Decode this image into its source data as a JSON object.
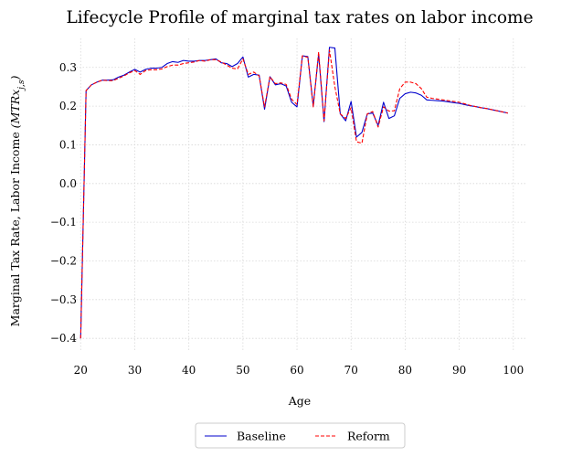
{
  "chart_data": {
    "type": "line",
    "title": "Lifecycle Profile of marginal tax rates on labor income",
    "xlabel": "Age",
    "ylabel": "Marginal Tax Rate, Labor Income",
    "ylabel_math": "(MTRx_{j,s})",
    "xlim": [
      18.6,
      102.4
    ],
    "ylim": [
      -0.435,
      0.375
    ],
    "xticks": [
      20,
      30,
      40,
      50,
      60,
      70,
      80,
      90,
      100
    ],
    "yticks": [
      -0.4,
      -0.3,
      -0.2,
      -0.1,
      0.0,
      0.1,
      0.2,
      0.3
    ],
    "ytick_labels": [
      "−0.4",
      "−0.3",
      "−0.2",
      "−0.1",
      "0.0",
      "0.1",
      "0.2",
      "0.3"
    ],
    "grid": true,
    "legend_position": "bottom-center",
    "x": [
      20,
      21,
      22,
      23,
      24,
      25,
      26,
      27,
      28,
      29,
      30,
      31,
      32,
      33,
      34,
      35,
      36,
      37,
      38,
      39,
      40,
      41,
      42,
      43,
      44,
      45,
      46,
      47,
      48,
      49,
      50,
      51,
      52,
      53,
      54,
      55,
      56,
      57,
      58,
      59,
      60,
      61,
      62,
      63,
      64,
      65,
      66,
      67,
      68,
      69,
      70,
      71,
      72,
      73,
      74,
      75,
      76,
      77,
      78,
      79,
      80,
      81,
      82,
      83,
      84,
      85,
      86,
      87,
      88,
      89,
      90,
      91,
      92,
      93,
      94,
      95,
      96,
      97,
      98,
      99
    ],
    "series": [
      {
        "name": "Baseline",
        "color": "#0000cc",
        "dash": "solid",
        "values": [
          -0.4,
          0.24,
          0.255,
          0.262,
          0.267,
          0.267,
          0.268,
          0.275,
          0.28,
          0.288,
          0.295,
          0.288,
          0.295,
          0.298,
          0.298,
          0.3,
          0.31,
          0.315,
          0.313,
          0.318,
          0.316,
          0.316,
          0.318,
          0.318,
          0.32,
          0.322,
          0.312,
          0.31,
          0.302,
          0.31,
          0.327,
          0.275,
          0.282,
          0.28,
          0.192,
          0.276,
          0.255,
          0.258,
          0.252,
          0.21,
          0.198,
          0.33,
          0.328,
          0.2,
          0.335,
          0.16,
          0.352,
          0.35,
          0.18,
          0.162,
          0.212,
          0.12,
          0.132,
          0.18,
          0.182,
          0.15,
          0.21,
          0.168,
          0.175,
          0.22,
          0.232,
          0.236,
          0.234,
          0.228,
          0.216,
          0.215,
          0.214,
          0.213,
          0.211,
          0.209,
          0.207,
          0.204,
          0.201,
          0.199,
          0.196,
          0.194,
          0.191,
          0.188,
          0.185,
          0.182
        ]
      },
      {
        "name": "Reform",
        "color": "#ff0000",
        "dash": "dashed",
        "values": [
          -0.4,
          0.24,
          0.255,
          0.262,
          0.267,
          0.266,
          0.266,
          0.272,
          0.278,
          0.286,
          0.292,
          0.282,
          0.292,
          0.294,
          0.294,
          0.296,
          0.302,
          0.306,
          0.306,
          0.31,
          0.312,
          0.314,
          0.318,
          0.316,
          0.32,
          0.32,
          0.314,
          0.306,
          0.298,
          0.296,
          0.322,
          0.282,
          0.288,
          0.278,
          0.198,
          0.276,
          0.258,
          0.26,
          0.256,
          0.218,
          0.204,
          0.33,
          0.326,
          0.198,
          0.34,
          0.162,
          0.345,
          0.25,
          0.18,
          0.168,
          0.196,
          0.108,
          0.104,
          0.18,
          0.186,
          0.146,
          0.198,
          0.187,
          0.188,
          0.245,
          0.262,
          0.262,
          0.258,
          0.245,
          0.223,
          0.22,
          0.218,
          0.216,
          0.214,
          0.212,
          0.21,
          0.206,
          0.202,
          0.199,
          0.196,
          0.194,
          0.191,
          0.188,
          0.185,
          0.182
        ]
      }
    ]
  }
}
